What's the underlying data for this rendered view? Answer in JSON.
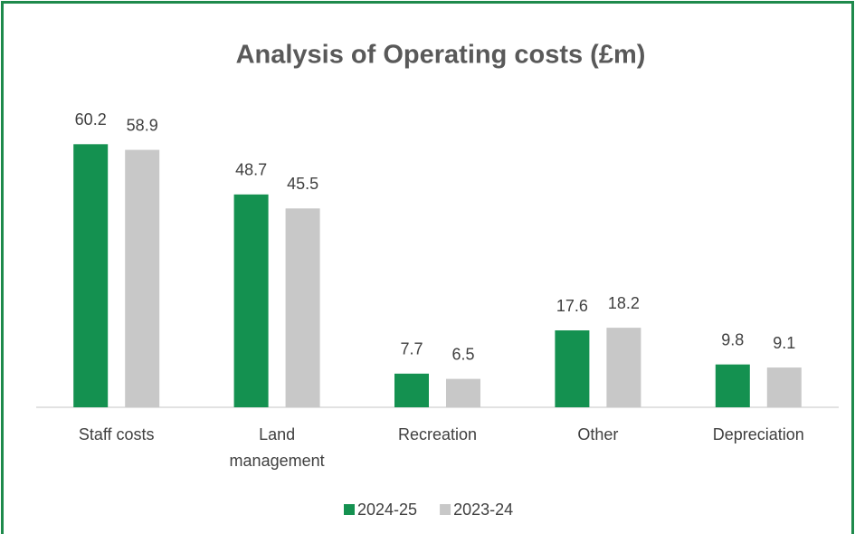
{
  "chart_data": {
    "type": "bar",
    "title": "Analysis of Operating costs (£m)",
    "categories": [
      "Staff costs",
      "Land management",
      "Recreation",
      "Other",
      "Depreciation"
    ],
    "series": [
      {
        "name": "2024-25",
        "color": "#149150",
        "values": [
          60.2,
          48.7,
          7.7,
          17.6,
          9.8
        ]
      },
      {
        "name": "2023-24",
        "color": "#c8c8c8",
        "values": [
          58.9,
          45.5,
          6.5,
          18.2,
          9.1
        ]
      }
    ],
    "ylim": [
      0,
      70
    ],
    "legend": "bottom"
  }
}
